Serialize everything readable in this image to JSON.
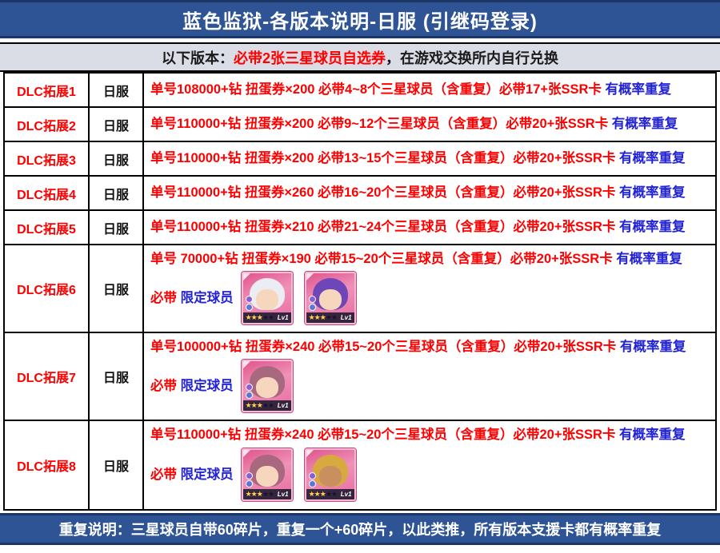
{
  "title": "蓝色监狱-各版本说明-日服 (引继码登录)",
  "subheader": {
    "prefix": "以下版本：",
    "highlight": "必带2张三星球员自选券",
    "suffix": "，在游戏交换所内自行兑换"
  },
  "table": {
    "rows": [
      {
        "dlc": "DLC拓展1",
        "server": "日服",
        "desc_red": "单号108000+钻 扭蛋券×200 必带4~8个三星球员（含重复）必带17+张SSR卡 ",
        "desc_blue": "有概率重复"
      },
      {
        "dlc": "DLC拓展2",
        "server": "日服",
        "desc_red": "单号110000+钻 扭蛋券×200 必带9~12个三星球员（含重复）必带20+张SSR卡 ",
        "desc_blue": "有概率重复"
      },
      {
        "dlc": "DLC拓展3",
        "server": "日服",
        "desc_red": "单号110000+钻 扭蛋券×200 必带13~15个三星球员（含重复）必带20+张SSR卡 ",
        "desc_blue": "有概率重复"
      },
      {
        "dlc": "DLC拓展4",
        "server": "日服",
        "desc_red": "单号110000+钻 扭蛋券×260 必带16~20个三星球员（含重复）必带20+张SSR卡 ",
        "desc_blue": "有概率重复"
      },
      {
        "dlc": "DLC拓展5",
        "server": "日服",
        "desc_red": "单号110000+钻 扭蛋券×210 必带21~24个三星球员（含重复）必带20+张SSR卡 ",
        "desc_blue": "有概率重复"
      },
      {
        "dlc": "DLC拓展6",
        "server": "日服",
        "desc_red": "单号 70000+钻 扭蛋券×190 必带15~20个三星球员（含重复）必带20+张SSR卡 ",
        "desc_blue": "有概率重复",
        "extra_red": "必带 ",
        "extra_blue": "限定球员",
        "cards": [
          "white-hair-player-card",
          "purple-hair-player-card"
        ]
      },
      {
        "dlc": "DLC拓展7",
        "server": "日服",
        "desc_red": "单号100000+钻 扭蛋券×240 必带15~20个三星球员（含重复）必带20+张SSR卡 ",
        "desc_blue": "有概率重复",
        "extra_red": "必带 ",
        "extra_blue": "限定球员",
        "cards": [
          "mauve-hair-player-card"
        ]
      },
      {
        "dlc": "DLC拓展8",
        "server": "日服",
        "desc_red": "单号110000+钻 扭蛋券×240 必带15~20个三星球员（含重复）必带20+张SSR卡 ",
        "desc_blue": "有概率重复",
        "extra_red": "必带 ",
        "extra_blue": "限定球员",
        "cards": [
          "mauve-hair-player-card",
          "blond-spiky-hair-player-card"
        ]
      }
    ]
  },
  "card": {
    "stars_gold": "★★★",
    "stars_dark": "★★",
    "lv_label": "Lv1"
  },
  "footer": "重复说明：三星球员自带60碎片，重复一个+60碎片，以此类推，所有版本支援卡都有概率重复",
  "colors": {
    "header_bg": "#2E5496",
    "header_border": "#1B3665",
    "subheader_bg": "#DADDE6",
    "red_text": "#FE0000",
    "blue_text": "#2323D6",
    "card_pink": "#E8639A",
    "star_gold": "#FFD34D"
  }
}
